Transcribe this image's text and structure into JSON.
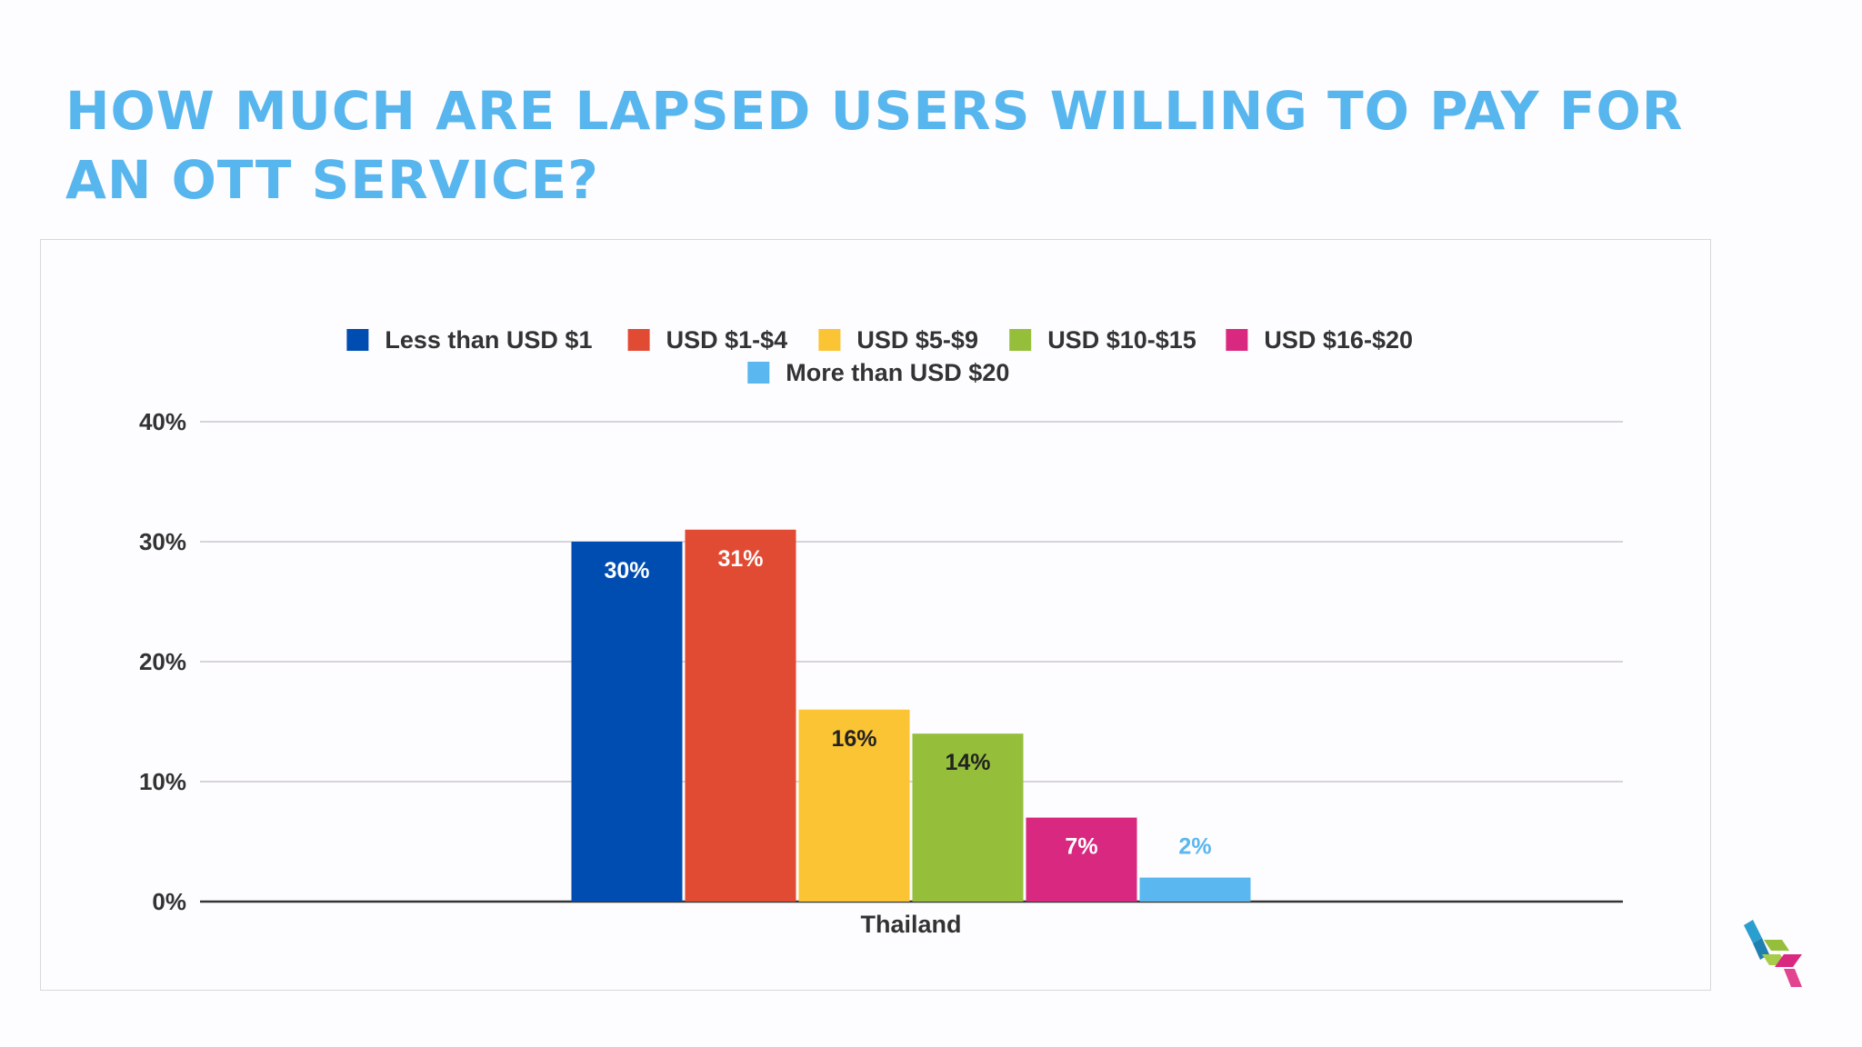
{
  "title": "HOW MUCH ARE LAPSED USERS WILLING TO PAY FOR AN OTT SERVICE?",
  "chart_data": {
    "type": "bar",
    "categories": [
      "Thailand"
    ],
    "series": [
      {
        "name": "Less than USD $1",
        "values": [
          30
        ],
        "color": "#004db1",
        "label_color": "#ffffff"
      },
      {
        "name": "USD $1-$4",
        "values": [
          31
        ],
        "color": "#e24b33",
        "label_color": "#ffffff"
      },
      {
        "name": "USD $5-$9",
        "values": [
          16
        ],
        "color": "#fbc434",
        "label_color": "#222222"
      },
      {
        "name": "USD $10-$15",
        "values": [
          14
        ],
        "color": "#95bf3a",
        "label_color": "#222222"
      },
      {
        "name": "USD $16-$20",
        "values": [
          7
        ],
        "color": "#d92880",
        "label_color": "#ffffff"
      },
      {
        "name": "More than USD $20",
        "values": [
          2
        ],
        "color": "#5bb7ef",
        "label_color": "#5bb7ef"
      }
    ],
    "value_labels": [
      "30%",
      "31%",
      "16%",
      "14%",
      "7%",
      "2%"
    ],
    "yticks": [
      "0%",
      "10%",
      "20%",
      "30%",
      "40%"
    ],
    "ylim": [
      0,
      40
    ],
    "grid": true,
    "legend_position": "top-center",
    "xlabel": "",
    "ylabel": ""
  },
  "logo": {
    "icon": "cube-logo-icon",
    "colors": [
      "#2a9fcf",
      "#95bf3a",
      "#d92880"
    ]
  }
}
